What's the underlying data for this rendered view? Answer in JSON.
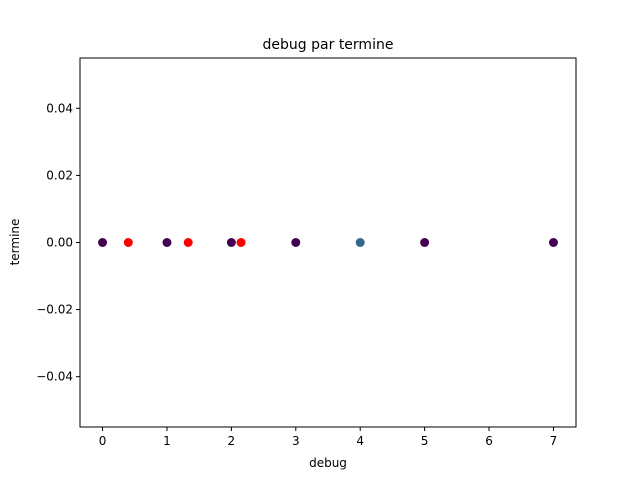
{
  "chart_data": {
    "type": "scatter",
    "title": "debug par termine",
    "xlabel": "debug",
    "ylabel": "termine",
    "xlim": [
      -0.35,
      7.35
    ],
    "ylim": [
      -0.055,
      0.055
    ],
    "x_ticks": [
      0,
      1,
      2,
      3,
      4,
      5,
      6,
      7
    ],
    "x_tick_labels": [
      "0",
      "1",
      "2",
      "3",
      "4",
      "5",
      "6",
      "7"
    ],
    "y_ticks": [
      -0.04,
      -0.02,
      0.0,
      0.02,
      0.04
    ],
    "y_tick_labels": [
      "−0.04",
      "−0.02",
      "0.00",
      "0.02",
      "0.04"
    ],
    "grid": false,
    "legend": "none",
    "colors": {
      "dark_purple": "#440154",
      "red": "#ff0000",
      "teal": "#31688e"
    },
    "points": [
      {
        "x": 0,
        "y": 0,
        "color": "#440154"
      },
      {
        "x": 0.4,
        "y": 0,
        "color": "#ff0000"
      },
      {
        "x": 1,
        "y": 0,
        "color": "#440154"
      },
      {
        "x": 1.33,
        "y": 0,
        "color": "#ff0000"
      },
      {
        "x": 2,
        "y": 0,
        "color": "#440154"
      },
      {
        "x": 2.15,
        "y": 0,
        "color": "#ff0000"
      },
      {
        "x": 3,
        "y": 0,
        "color": "#440154"
      },
      {
        "x": 4,
        "y": 0,
        "color": "#31688e"
      },
      {
        "x": 5,
        "y": 0,
        "color": "#440154"
      },
      {
        "x": 7,
        "y": 0,
        "color": "#440154"
      }
    ]
  }
}
